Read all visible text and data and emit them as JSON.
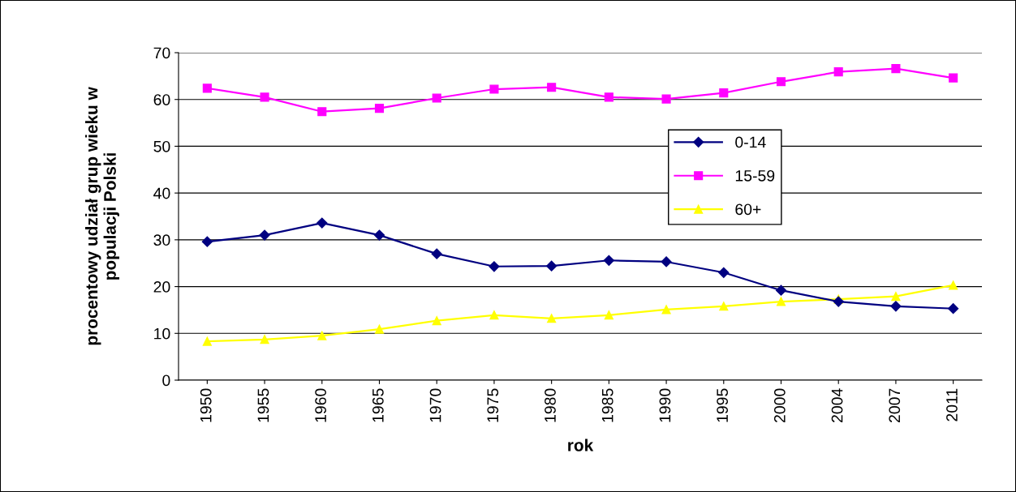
{
  "chart_data": {
    "type": "line",
    "xlabel": "rok",
    "ylabel": "procentowy udział grup wieku w\npopulacji Polski",
    "categories": [
      "1950",
      "1955",
      "1960",
      "1965",
      "1970",
      "1975",
      "1980",
      "1985",
      "1990",
      "1995",
      "2000",
      "2004",
      "2007",
      "2011"
    ],
    "series": [
      {
        "name": "0-14",
        "color": "#000080",
        "marker": "diamond",
        "values": [
          29.6,
          31.0,
          33.6,
          31.0,
          27.0,
          24.3,
          24.4,
          25.6,
          25.3,
          23.0,
          19.2,
          16.8,
          15.8,
          15.3
        ]
      },
      {
        "name": "15-59",
        "color": "#ff00ff",
        "marker": "square",
        "values": [
          62.4,
          60.5,
          57.4,
          58.1,
          60.3,
          62.2,
          62.6,
          60.5,
          60.1,
          61.4,
          63.8,
          65.9,
          66.6,
          64.6
        ]
      },
      {
        "name": "60+",
        "color": "#ffff00",
        "marker": "triangle",
        "values": [
          8.3,
          8.7,
          9.5,
          10.9,
          12.7,
          13.9,
          13.2,
          13.9,
          15.1,
          15.8,
          16.8,
          17.3,
          17.9,
          20.3
        ]
      }
    ],
    "ylim": [
      0,
      70
    ],
    "yticks": [
      0,
      10,
      20,
      30,
      40,
      50,
      60,
      70
    ],
    "grid": "y",
    "legend": "right"
  }
}
